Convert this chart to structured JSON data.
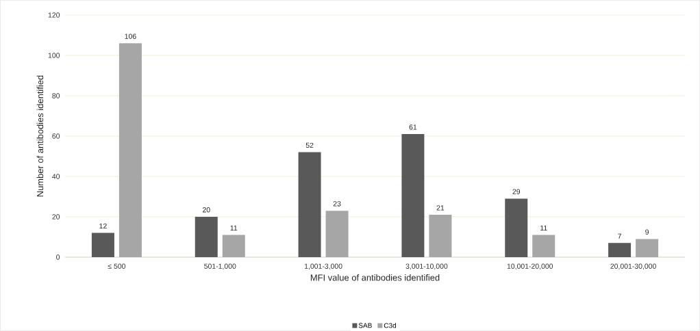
{
  "chart_data": {
    "type": "bar",
    "xlabel": "MFI value of antibodies identified",
    "ylabel": "Number of antibodies identified",
    "categories": [
      "≤ 500",
      "501-1,000",
      "1,001-3,000",
      "3,001-10,000",
      "10,001-20,000",
      "20,001-30,000"
    ],
    "series": [
      {
        "name": "SAB",
        "color": "#595959",
        "values": [
          12,
          20,
          52,
          61,
          29,
          7
        ]
      },
      {
        "name": "C3d",
        "color": "#a6a6a6",
        "values": [
          106,
          11,
          23,
          21,
          11,
          9
        ]
      }
    ],
    "ylim": [
      0,
      120
    ],
    "yticks": [
      0,
      20,
      40,
      60,
      80,
      100,
      120
    ],
    "grid": "y",
    "legend": "bottom",
    "data_labels": true
  }
}
